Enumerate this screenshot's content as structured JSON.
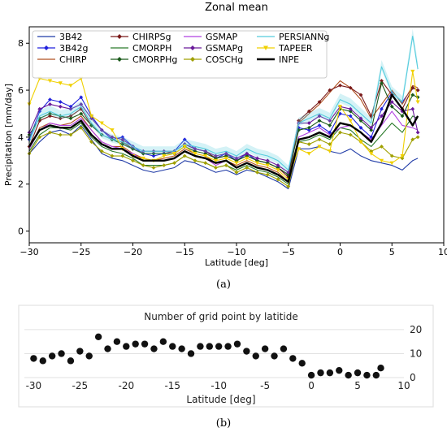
{
  "chart_data": [
    {
      "type": "line",
      "title": "Zonal mean",
      "xlabel": "Latitude [deg]",
      "ylabel": "Precipitation [mm/day]",
      "xlim": [
        -30,
        10
      ],
      "ylim": [
        -0.5,
        8.7
      ],
      "xticks": [
        -30,
        -25,
        -20,
        -15,
        -10,
        -5,
        0,
        5,
        10
      ],
      "yticks": [
        0,
        2,
        4,
        6,
        8
      ],
      "legend_position": "top",
      "x": [
        -30,
        -29,
        -28,
        -27,
        -26,
        -25,
        -24,
        -23,
        -22,
        -21,
        -20,
        -19,
        -18,
        -17,
        -16,
        -15,
        -14,
        -13,
        -12,
        -11,
        -10,
        -9,
        -8,
        -7,
        -6,
        -5,
        -4,
        -3,
        -2,
        -1,
        0,
        1,
        2,
        3,
        4,
        5,
        6,
        7,
        7.5
      ],
      "series": [
        {
          "name": "3B42",
          "color": "#1f3aa6",
          "marker": "none",
          "width": 1.1,
          "values": [
            3.3,
            3.8,
            4.2,
            4.3,
            4.1,
            4.5,
            3.9,
            3.3,
            3.1,
            3.0,
            2.8,
            2.6,
            2.5,
            2.6,
            2.7,
            3.0,
            2.9,
            2.7,
            2.5,
            2.6,
            2.4,
            2.6,
            2.5,
            2.3,
            2.1,
            1.8,
            3.5,
            3.5,
            3.6,
            3.4,
            3.3,
            3.5,
            3.2,
            3.0,
            2.9,
            2.8,
            2.6,
            3.0,
            3.1
          ]
        },
        {
          "name": "3B42g",
          "color": "#2222dd",
          "marker": "diamond",
          "width": 1.1,
          "values": [
            3.9,
            5.1,
            5.6,
            5.5,
            5.3,
            5.7,
            4.9,
            4.3,
            3.9,
            4.0,
            3.6,
            3.3,
            3.2,
            3.3,
            3.4,
            3.9,
            3.5,
            3.4,
            3.1,
            3.3,
            3.0,
            3.3,
            3.0,
            2.9,
            2.7,
            2.4,
            4.4,
            4.3,
            4.5,
            4.2,
            5.0,
            4.9,
            4.4,
            4.0,
            5.2,
            5.9,
            5.5,
            6.1,
            6.0
          ]
        },
        {
          "name": "CHIRP",
          "color": "#b05020",
          "marker": "none",
          "width": 1.1,
          "values": [
            3.5,
            4.4,
            4.6,
            4.5,
            4.6,
            4.9,
            4.3,
            3.8,
            3.6,
            3.6,
            3.3,
            3.1,
            3.0,
            3.1,
            3.2,
            3.5,
            3.3,
            3.2,
            2.9,
            3.0,
            2.8,
            3.0,
            2.8,
            2.7,
            2.5,
            2.1,
            4.6,
            5.0,
            5.4,
            5.9,
            6.4,
            6.1,
            5.6,
            4.8,
            5.4,
            6.0,
            5.4,
            6.2,
            6.1
          ]
        },
        {
          "name": "CHIRPSg",
          "color": "#7a1a1a",
          "marker": "diamond",
          "width": 1.1,
          "values": [
            3.6,
            4.7,
            4.9,
            4.8,
            4.9,
            5.2,
            4.5,
            4.1,
            3.9,
            3.8,
            3.5,
            3.3,
            3.3,
            3.3,
            3.4,
            3.7,
            3.5,
            3.4,
            3.1,
            3.2,
            3.0,
            3.2,
            3.0,
            2.9,
            2.7,
            2.3,
            4.7,
            5.1,
            5.5,
            6.0,
            6.2,
            6.1,
            5.8,
            4.9,
            6.4,
            5.8,
            5.2,
            6.1,
            6.0
          ]
        },
        {
          "name": "CMORPH",
          "color": "#2a7a2a",
          "marker": "none",
          "width": 1.1,
          "values": [
            3.4,
            4.1,
            4.4,
            4.4,
            4.3,
            4.6,
            4.0,
            3.6,
            3.4,
            3.3,
            3.1,
            2.8,
            2.8,
            2.8,
            2.9,
            3.2,
            3.0,
            2.9,
            2.7,
            2.8,
            2.6,
            2.8,
            2.6,
            2.5,
            2.3,
            2.0,
            3.8,
            3.9,
            4.1,
            3.9,
            4.4,
            4.3,
            3.9,
            3.6,
            4.1,
            4.6,
            4.2,
            4.9,
            4.8
          ]
        },
        {
          "name": "CMORPHg",
          "color": "#1a5a1a",
          "marker": "diamond",
          "width": 1.1,
          "values": [
            4.1,
            4.8,
            5.0,
            4.9,
            4.8,
            5.0,
            4.5,
            4.1,
            3.9,
            3.7,
            3.5,
            3.3,
            3.3,
            3.3,
            3.3,
            3.6,
            3.4,
            3.3,
            3.1,
            3.2,
            3.0,
            3.2,
            3.0,
            2.9,
            2.7,
            2.4,
            4.3,
            4.4,
            4.7,
            4.5,
            5.2,
            5.1,
            4.7,
            4.3,
            6.3,
            5.3,
            4.9,
            5.8,
            5.7
          ]
        },
        {
          "name": "GSMAP",
          "color": "#b040e0",
          "marker": "none",
          "width": 1.1,
          "values": [
            3.5,
            4.3,
            4.6,
            4.5,
            4.5,
            4.8,
            4.3,
            3.8,
            3.6,
            3.5,
            3.3,
            3.0,
            3.0,
            3.0,
            3.1,
            3.4,
            3.2,
            3.1,
            2.8,
            3.0,
            2.7,
            2.9,
            2.7,
            2.6,
            2.4,
            2.1,
            4.0,
            4.2,
            4.4,
            4.1,
            4.4,
            4.5,
            4.2,
            3.9,
            4.5,
            5.1,
            4.5,
            4.4,
            4.3
          ]
        },
        {
          "name": "GSMAPg",
          "color": "#6a1a9a",
          "marker": "diamond",
          "width": 1.1,
          "values": [
            4.2,
            5.2,
            5.4,
            5.3,
            5.2,
            5.4,
            4.8,
            4.3,
            4.0,
            3.9,
            3.6,
            3.4,
            3.4,
            3.4,
            3.4,
            3.7,
            3.5,
            3.4,
            3.2,
            3.3,
            3.1,
            3.3,
            3.1,
            3.0,
            2.8,
            2.5,
            4.6,
            4.6,
            4.9,
            4.7,
            5.3,
            5.2,
            4.8,
            4.4,
            4.9,
            5.5,
            5.1,
            5.2,
            4.2
          ]
        },
        {
          "name": "COSCHg",
          "color": "#a0a000",
          "marker": "diamond",
          "width": 1.1,
          "values": [
            3.3,
            4.0,
            4.2,
            4.1,
            4.1,
            4.4,
            3.8,
            3.4,
            3.2,
            3.2,
            3.0,
            2.8,
            2.7,
            2.8,
            2.9,
            3.2,
            3.0,
            2.9,
            2.7,
            2.8,
            2.5,
            2.7,
            2.5,
            2.4,
            2.2,
            1.9,
            3.8,
            3.7,
            3.9,
            3.7,
            4.2,
            4.1,
            3.8,
            3.4,
            3.6,
            3.2,
            3.1,
            3.9,
            4.0
          ]
        },
        {
          "name": "PERSIANNg",
          "color": "#55ccdd",
          "marker": "none",
          "width": 1.1,
          "band": true,
          "values": [
            3.8,
            4.9,
            5.1,
            4.9,
            5.0,
            5.3,
            4.6,
            4.1,
            3.9,
            3.8,
            3.6,
            3.4,
            3.4,
            3.4,
            3.4,
            3.7,
            3.6,
            3.5,
            3.3,
            3.4,
            3.2,
            3.5,
            3.3,
            3.2,
            3.0,
            2.6,
            4.6,
            4.8,
            5.0,
            4.8,
            5.6,
            5.4,
            5.0,
            4.6,
            7.0,
            5.9,
            5.5,
            8.3,
            6.9
          ]
        },
        {
          "name": "TAPEER",
          "color": "#f0d000",
          "marker": "triangle",
          "width": 1.1,
          "values": [
            5.4,
            6.5,
            6.4,
            6.3,
            6.2,
            6.5,
            4.9,
            4.6,
            4.3,
            3.5,
            3.2,
            3.1,
            3.0,
            3.2,
            3.3,
            3.6,
            3.3,
            3.2,
            3.0,
            3.1,
            2.9,
            3.1,
            2.9,
            2.8,
            2.6,
            2.2,
            3.5,
            3.3,
            3.6,
            3.4,
            5.3,
            4.7,
            3.8,
            3.3,
            3.0,
            2.9,
            3.2,
            6.8,
            5.5
          ]
        },
        {
          "name": "INPE",
          "color": "#000000",
          "marker": "none",
          "width": 2.4,
          "values": [
            3.6,
            4.3,
            4.5,
            4.4,
            4.4,
            4.7,
            4.1,
            3.7,
            3.5,
            3.5,
            3.2,
            3.0,
            3.0,
            3.0,
            3.1,
            3.4,
            3.2,
            3.1,
            2.9,
            3.0,
            2.7,
            2.9,
            2.7,
            2.6,
            2.4,
            2.1,
            3.9,
            4.0,
            4.2,
            4.0,
            4.6,
            4.5,
            4.2,
            3.8,
            4.6,
            5.8,
            5.2,
            4.5,
            4.9
          ]
        }
      ],
      "caption": "(a)"
    },
    {
      "type": "scatter",
      "title": "Number of grid point by latitide",
      "xlabel": "Latitude [deg]",
      "xlim": [
        -31,
        10
      ],
      "ylim": [
        -1,
        22
      ],
      "xticks": [
        -30,
        -25,
        -20,
        -15,
        -10,
        -5,
        0,
        5,
        10
      ],
      "yticks": [
        0,
        10,
        20
      ],
      "grid": true,
      "x": [
        -30,
        -29,
        -28,
        -27,
        -26,
        -25,
        -24,
        -23,
        -22,
        -21,
        -20,
        -19,
        -18,
        -17,
        -16,
        -15,
        -14,
        -13,
        -12,
        -11,
        -10,
        -9,
        -8,
        -7,
        -6,
        -5,
        -4,
        -3,
        -2,
        -1,
        0,
        1,
        2,
        3,
        4,
        5,
        6,
        7,
        7.5
      ],
      "values": [
        8,
        7,
        9,
        10,
        7,
        11,
        9,
        17,
        12,
        15,
        13,
        14,
        14,
        12,
        15,
        13,
        12,
        10,
        13,
        13,
        13,
        13,
        14,
        11,
        9,
        12,
        9,
        12,
        8,
        6,
        1,
        2,
        2,
        3,
        1,
        2,
        1,
        1,
        4
      ],
      "marker_color": "#111111",
      "caption": "(b)"
    }
  ]
}
